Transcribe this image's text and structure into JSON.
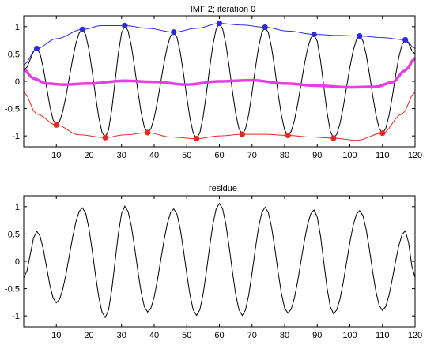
{
  "chart_data": [
    {
      "type": "line",
      "title": "IMF 2;   iteration 0",
      "xlim": [
        0,
        120
      ],
      "ylim": [
        -1.2,
        1.2
      ],
      "x_ticks": [
        10,
        20,
        30,
        40,
        50,
        60,
        70,
        80,
        90,
        100,
        110,
        120
      ],
      "y_ticks": [
        1,
        0.5,
        0,
        -0.5,
        -1
      ],
      "grid": false,
      "series": [
        {
          "role": "signal",
          "color": "#000000",
          "formula_note": "x = 1..120, step 1",
          "peak_points": [
            [
              4,
              0.6
            ],
            [
              18,
              0.95
            ],
            [
              31,
              1.02
            ],
            [
              46,
              0.9
            ],
            [
              60,
              1.06
            ],
            [
              74,
              0.99
            ],
            [
              89,
              0.86
            ],
            [
              103,
              0.83
            ],
            [
              117,
              0.76
            ]
          ],
          "trough_points": [
            [
              10,
              -0.8
            ],
            [
              25,
              -1.03
            ],
            [
              38,
              -0.94
            ],
            [
              53,
              -1.05
            ],
            [
              67,
              -0.97
            ],
            [
              81,
              -0.99
            ],
            [
              95,
              -1.04
            ],
            [
              110,
              -0.95
            ]
          ]
        },
        {
          "role": "upper-envelope",
          "color": "#2a2ae8",
          "points": [
            [
              0,
              0.3
            ],
            [
              4,
              0.6
            ],
            [
              10,
              0.78
            ],
            [
              18,
              0.95
            ],
            [
              24,
              1.02
            ],
            [
              31,
              1.02
            ],
            [
              38,
              0.97
            ],
            [
              46,
              0.9
            ],
            [
              53,
              0.97
            ],
            [
              60,
              1.06
            ],
            [
              67,
              1.03
            ],
            [
              74,
              0.99
            ],
            [
              81,
              0.92
            ],
            [
              89,
              0.86
            ],
            [
              96,
              0.84
            ],
            [
              103,
              0.83
            ],
            [
              110,
              0.8
            ],
            [
              117,
              0.76
            ],
            [
              120,
              0.6
            ]
          ]
        },
        {
          "role": "lower-envelope",
          "color": "#e8281e",
          "points": [
            [
              0,
              -0.2
            ],
            [
              4,
              -0.6
            ],
            [
              10,
              -0.8
            ],
            [
              17,
              -0.98
            ],
            [
              25,
              -1.03
            ],
            [
              31,
              -0.98
            ],
            [
              38,
              -0.94
            ],
            [
              45,
              -1.02
            ],
            [
              53,
              -1.05
            ],
            [
              60,
              -1.0
            ],
            [
              67,
              -0.97
            ],
            [
              74,
              -0.97
            ],
            [
              81,
              -0.99
            ],
            [
              88,
              -1.02
            ],
            [
              95,
              -1.04
            ],
            [
              102,
              -1.08
            ],
            [
              110,
              -0.95
            ],
            [
              116,
              -0.6
            ],
            [
              120,
              -0.2
            ]
          ]
        },
        {
          "role": "mean-envelope",
          "color": "#e83ce8",
          "points": [
            [
              0,
              0.22
            ],
            [
              3,
              0.05
            ],
            [
              7,
              -0.04
            ],
            [
              12,
              -0.06
            ],
            [
              20,
              -0.04
            ],
            [
              31,
              0.01
            ],
            [
              40,
              -0.01
            ],
            [
              50,
              -0.06
            ],
            [
              60,
              0.0
            ],
            [
              70,
              0.02
            ],
            [
              80,
              -0.04
            ],
            [
              90,
              -0.08
            ],
            [
              100,
              -0.11
            ],
            [
              108,
              -0.1
            ],
            [
              113,
              -0.02
            ],
            [
              117,
              0.2
            ],
            [
              120,
              0.42
            ]
          ]
        }
      ],
      "upper_markers": [
        [
          4,
          0.6
        ],
        [
          18,
          0.95
        ],
        [
          31,
          1.02
        ],
        [
          46,
          0.9
        ],
        [
          60,
          1.06
        ],
        [
          74,
          0.99
        ],
        [
          89,
          0.86
        ],
        [
          103,
          0.83
        ],
        [
          117,
          0.76
        ]
      ],
      "lower_markers": [
        [
          10,
          -0.8
        ],
        [
          25,
          -1.03
        ],
        [
          38,
          -0.94
        ],
        [
          53,
          -1.05
        ],
        [
          67,
          -0.97
        ],
        [
          81,
          -0.99
        ],
        [
          95,
          -1.04
        ],
        [
          110,
          -0.95
        ]
      ]
    },
    {
      "type": "line",
      "title": "residue",
      "xlim": [
        0,
        120
      ],
      "ylim": [
        -1.2,
        1.2
      ],
      "x_ticks": [
        10,
        20,
        30,
        40,
        50,
        60,
        70,
        80,
        90,
        100,
        110,
        120
      ],
      "y_ticks": [
        1,
        0.5,
        0,
        -0.5,
        -1
      ],
      "grid": false,
      "series": [
        {
          "role": "residue",
          "color": "#000000",
          "peak_points": [
            [
              4,
              0.55
            ],
            [
              18,
              0.98
            ],
            [
              31,
              1.01
            ],
            [
              46,
              0.96
            ],
            [
              60,
              1.06
            ],
            [
              74,
              0.99
            ],
            [
              89,
              0.94
            ],
            [
              103,
              0.93
            ],
            [
              117,
              0.56
            ]
          ],
          "trough_points": [
            [
              10,
              -0.76
            ],
            [
              25,
              -1.03
            ],
            [
              38,
              -0.93
            ],
            [
              53,
              -0.99
            ],
            [
              67,
              -0.99
            ],
            [
              81,
              -0.95
            ],
            [
              95,
              -0.96
            ],
            [
              110,
              -0.9
            ]
          ]
        }
      ]
    }
  ]
}
